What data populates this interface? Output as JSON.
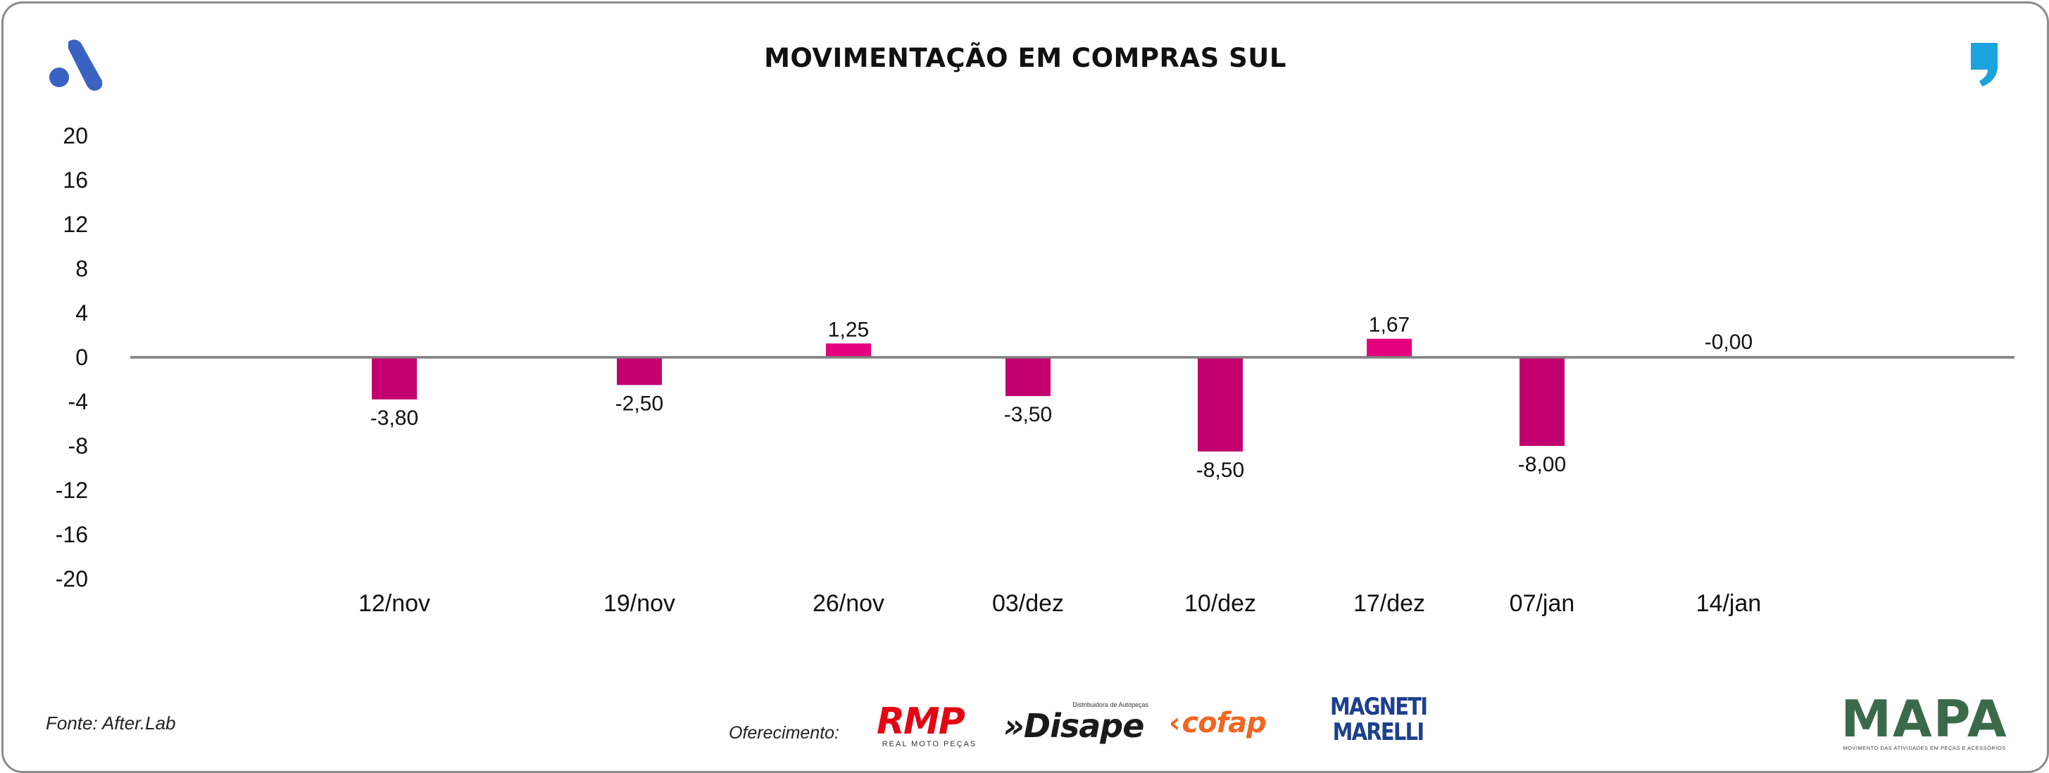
{
  "header": {
    "title": "MOVIMENTAÇÃO EM COMPRAS SUL"
  },
  "footer": {
    "source": "Fonte: After.Lab",
    "sponsor_label": "Oferecimento:",
    "sponsors": [
      {
        "name": "RMP",
        "subtitle": "REAL MOTO PEÇAS"
      },
      {
        "name": "»Disape",
        "subtitle": "Distribuidora de Autopeças"
      },
      {
        "name": "cofap"
      },
      {
        "name": "MAGNETI",
        "name2": "MARELLI"
      }
    ],
    "brand": {
      "name": "MAPA",
      "tagline": "MOVIMENTO DAS ATIVIDADES EM PEÇAS E ACESSÓRIOS"
    }
  },
  "colors": {
    "bar": "#c2006f",
    "bar_positive_highlight": "#e5007e",
    "zero_line": "#7f7f7f",
    "text": "#111111",
    "logo_blue": "#3a62c2",
    "quote_blue": "#1aa3dd"
  },
  "chart_data": {
    "type": "bar",
    "title": "MOVIMENTAÇÃO EM COMPRAS SUL",
    "categories": [
      "12/nov",
      "19/nov",
      "26/nov",
      "03/dez",
      "10/dez",
      "17/dez",
      "07/jan",
      "14/jan"
    ],
    "values": [
      -3.8,
      -2.5,
      1.25,
      -3.5,
      -8.5,
      1.67,
      -8.0,
      -0.0
    ],
    "data_labels": [
      "-3,80",
      "-2,50",
      "1,25",
      "-3,50",
      "-8,50",
      "1,67",
      "-8,00",
      "-0,00"
    ],
    "ylim": [
      -20,
      20
    ],
    "yticks": [
      "20",
      "16",
      "12",
      "8",
      "4",
      "0",
      "-4",
      "-8",
      "-12",
      "-16",
      "-20"
    ],
    "ytick_values": [
      20,
      16,
      12,
      8,
      4,
      0,
      -4,
      -8,
      -12,
      -16,
      -20
    ],
    "xlabel": "",
    "ylabel": "",
    "grid": false,
    "legend": "none"
  }
}
